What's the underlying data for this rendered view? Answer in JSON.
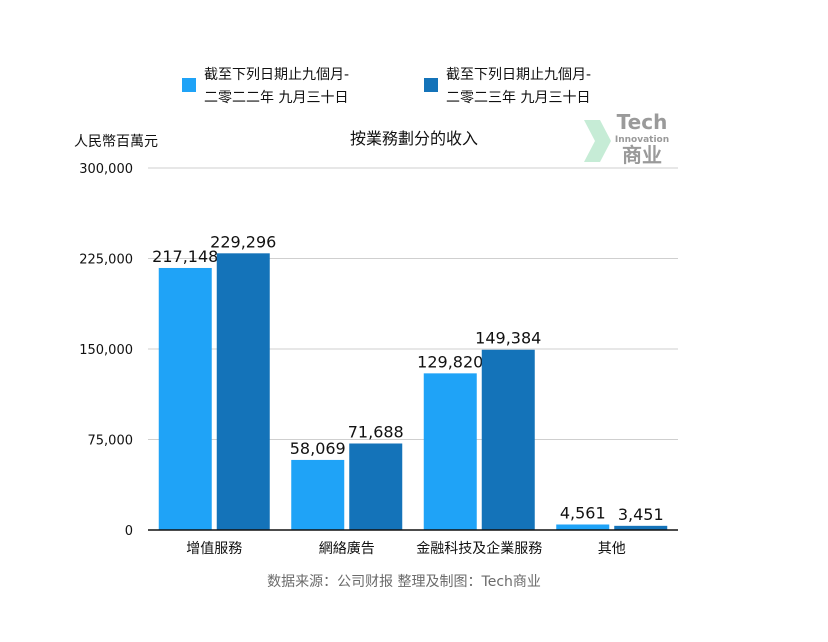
{
  "colors": {
    "series_1": "#1fa3f7",
    "series_2": "#1473b9",
    "grid": "#cfcfcf",
    "axis": "#111111",
    "source_text": "#6b6b6b",
    "watermark_text": "#9a9a9a",
    "watermark_arrow": "#c6ecd6"
  },
  "watermark": {
    "line1": "Tech",
    "line2": "Innovation",
    "line3": "商业"
  },
  "source_note": "数据来源：公司财报 整理及制图：Tech商业",
  "chart_data": {
    "type": "bar",
    "title": "按業務劃分的收入",
    "ylabel": "人民幣百萬元",
    "xlabel": "",
    "categories": [
      "增值服務",
      "網絡廣告",
      "金融科技及企業服務",
      "其他"
    ],
    "series": [
      {
        "name": "截至下列日期止九個月-二零二二年 九月三十日",
        "legend_lines": [
          "截至下列日期止九個月-",
          "二零二二年 九月三十日"
        ],
        "values": [
          217148,
          58069,
          129820,
          4561
        ],
        "labels": [
          "217,148",
          "58,069",
          "129,820",
          "4,561"
        ]
      },
      {
        "name": "截至下列日期止九個月-二零二三年 九月三十日",
        "legend_lines": [
          "截至下列日期止九個月-",
          "二零二三年 九月三十日"
        ],
        "values": [
          229296,
          71688,
          149384,
          3451
        ],
        "labels": [
          "229,296",
          "71,688",
          "149,384",
          "3,451"
        ]
      }
    ],
    "yticks": [
      0,
      75000,
      150000,
      225000,
      300000
    ],
    "ytick_labels": [
      "0",
      "75,000",
      "150,000",
      "225,000",
      "300,000"
    ],
    "ylim": [
      0,
      300000
    ],
    "grid": true,
    "legend_position": "top"
  }
}
